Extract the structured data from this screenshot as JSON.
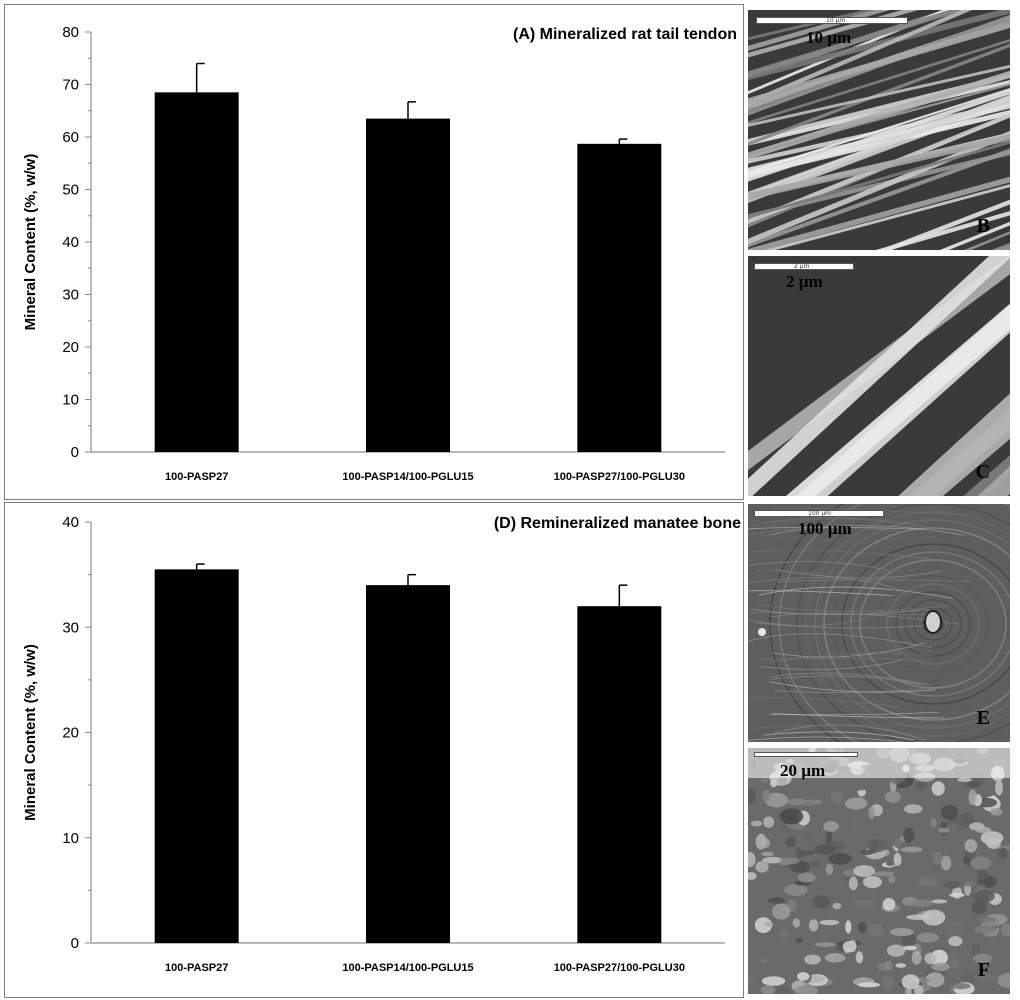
{
  "chart_data": [
    {
      "type": "bar",
      "title": "(A) Mineralized rat tail tendon",
      "ylabel": "Mineral Content (%, w/w)",
      "categories": [
        "100-PASP27",
        "100-PASP14/100-PGLU15",
        "100-PASP27/100-PGLU30"
      ],
      "values": [
        68.5,
        63.5,
        58.7
      ],
      "errors": [
        5.5,
        3.2,
        0.9
      ],
      "ylim": [
        0,
        80
      ],
      "yticks": [
        0,
        10,
        20,
        30,
        40,
        50,
        60,
        70,
        80
      ],
      "minor_ticks": true,
      "grid": false,
      "bar_color": "#000000"
    },
    {
      "type": "bar",
      "title": "(D) Remineralized manatee bone",
      "ylabel": "Mineral Content (%, w/w)",
      "categories": [
        "100-PASP27",
        "100-PASP14/100-PGLU15",
        "100-PASP27/100-PGLU30"
      ],
      "values": [
        35.5,
        34.0,
        32.0
      ],
      "errors": [
        0.5,
        1.0,
        2.0
      ],
      "ylim": [
        0,
        40
      ],
      "yticks": [
        0,
        10,
        20,
        30,
        40
      ],
      "minor_ticks": true,
      "grid": false,
      "bar_color": "#000000"
    }
  ],
  "micrographs": [
    {
      "letter": "B",
      "scalebar": "10 µm",
      "scalebar_small": "10 µm",
      "texture": "fibers-dense"
    },
    {
      "letter": "C",
      "scalebar": "2 µm",
      "scalebar_small": "2 µm",
      "texture": "fibers-wide"
    },
    {
      "letter": "E",
      "scalebar": "100 µm",
      "scalebar_small": "100 µm",
      "texture": "bone-osteon"
    },
    {
      "letter": "F",
      "scalebar": "20 µm",
      "scalebar_small": "",
      "texture": "rough-surface"
    }
  ]
}
